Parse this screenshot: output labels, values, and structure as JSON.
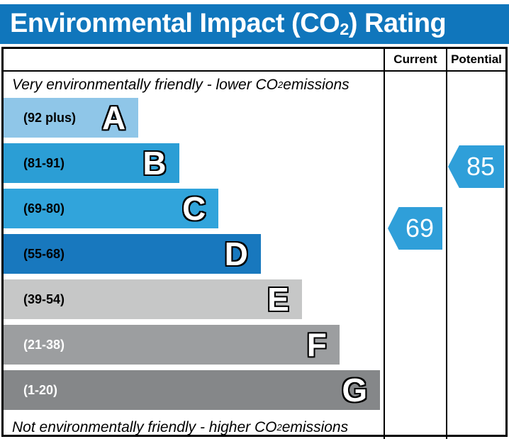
{
  "header": {
    "title_pre": "Environmental Impact (CO",
    "title_sub": "2",
    "title_post": ") Rating"
  },
  "table": {
    "col_current": "Current",
    "col_potential": "Potential",
    "top_note_pre": "Very environmentally friendly - lower CO",
    "top_note_sub": "2",
    "top_note_post": " emissions",
    "bottom_note_pre": "Not environmentally friendly - higher CO",
    "bottom_note_sub": "2",
    "bottom_note_post": " emissions"
  },
  "colors": {
    "title_bar_bg": "#1076BC",
    "title_text": "#FFFFFF",
    "arrow": "#2F9FD9",
    "border": "#000000"
  },
  "chart_data": {
    "type": "rating_band_chart",
    "title": "Environmental Impact (CO2) Rating",
    "bands": [
      {
        "letter": "A",
        "range_label": "(92 plus)",
        "color": "#8FC6E8",
        "label_color": "#000000",
        "bar_width_pct": 35.5
      },
      {
        "letter": "B",
        "range_label": "(81-91)",
        "color": "#2B9ED5",
        "label_color": "#000000",
        "bar_width_pct": 46.2
      },
      {
        "letter": "C",
        "range_label": "(69-80)",
        "color": "#31A4DB",
        "label_color": "#000000",
        "bar_width_pct": 56.6
      },
      {
        "letter": "D",
        "range_label": "(55-68)",
        "color": "#1878BE",
        "label_color": "#000000",
        "bar_width_pct": 67.7
      },
      {
        "letter": "E",
        "range_label": "(39-54)",
        "color": "#C6C7C7",
        "label_color": "#000000",
        "bar_width_pct": 78.5
      },
      {
        "letter": "F",
        "range_label": "(21-38)",
        "color": "#9C9EA0",
        "label_color": "#FFFFFF",
        "bar_width_pct": 88.4
      },
      {
        "letter": "G",
        "range_label": "(1-20)",
        "color": "#858789",
        "label_color": "#FFFFFF",
        "bar_width_pct": 99.1
      }
    ],
    "markers": {
      "current": {
        "column": "Current",
        "value": 69,
        "band": "C"
      },
      "potential": {
        "column": "Potential",
        "value": 85,
        "band": "B"
      }
    },
    "legend_position": "none",
    "grid": false
  }
}
